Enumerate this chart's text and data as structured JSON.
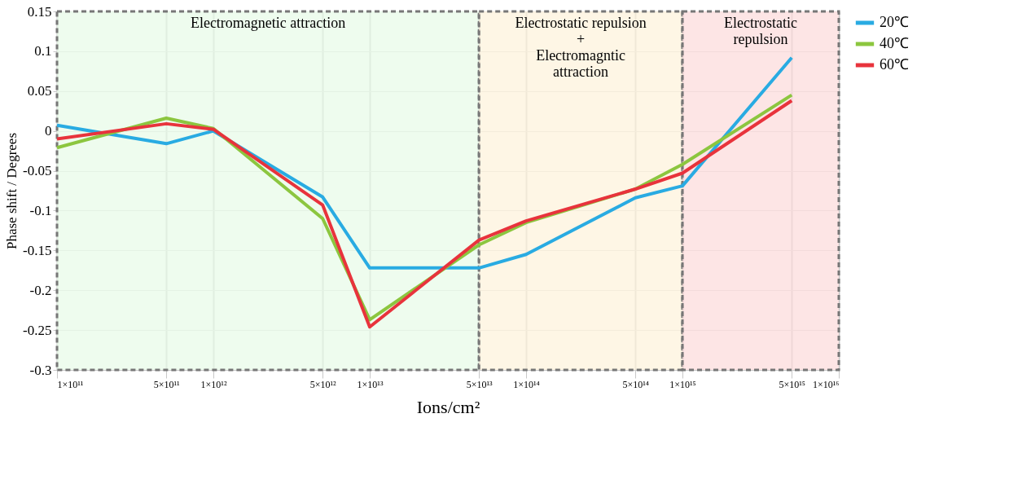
{
  "chart_data": {
    "type": "line",
    "xlabel": "Ions/cm²",
    "ylabel": "Phase shift / Degrees",
    "x": [
      100000000000.0,
      500000000000.0,
      1000000000000.0,
      5000000000000.0,
      10000000000000.0,
      50000000000000.0,
      100000000000000.0,
      500000000000000.0,
      1000000000000000.0,
      5000000000000000.0
    ],
    "series": [
      {
        "name": "20℃",
        "color": "#29abe2",
        "values": [
          0.007,
          -0.016,
          0,
          -0.083,
          -0.172,
          -0.172,
          -0.155,
          -0.084,
          -0.069,
          0.092
        ]
      },
      {
        "name": "40℃",
        "color": "#8cc63f",
        "values": [
          -0.021,
          0.016,
          0.003,
          -0.11,
          -0.237,
          -0.143,
          -0.115,
          -0.073,
          -0.042,
          0.045
        ]
      },
      {
        "name": "60℃",
        "color": "#e8333c",
        "values": [
          -0.01,
          0.009,
          0.002,
          -0.093,
          -0.246,
          -0.137,
          -0.113,
          -0.073,
          -0.053,
          0.038
        ]
      }
    ],
    "xlim": [
      100000000000.0,
      1e+16
    ],
    "xticks": [
      {
        "value": 100000000000.0,
        "label": "1×10¹¹"
      },
      {
        "value": 500000000000.0,
        "label": "5×10¹¹"
      },
      {
        "value": 1000000000000.0,
        "label": "1×10¹²"
      },
      {
        "value": 5000000000000.0,
        "label": "5×10¹²"
      },
      {
        "value": 10000000000000.0,
        "label": "1×10¹³"
      },
      {
        "value": 50000000000000.0,
        "label": "5×10¹³"
      },
      {
        "value": 100000000000000.0,
        "label": "1×10¹⁴"
      },
      {
        "value": 500000000000000.0,
        "label": "5×10¹⁴"
      },
      {
        "value": 1000000000000000.0,
        "label": "1×10¹⁵"
      },
      {
        "value": 5000000000000000.0,
        "label": "5×10¹⁵"
      },
      {
        "value": 1e+16,
        "label": "1×10¹⁶"
      }
    ],
    "ylim": [
      -0.3,
      0.15
    ],
    "yticks": [
      -0.3,
      -0.25,
      -0.2,
      -0.15,
      -0.1,
      -0.05,
      0,
      0.05,
      0.1,
      0.15
    ],
    "bands": [
      {
        "axis": "x",
        "from": 100000000000.0,
        "to": 50000000000000.0,
        "label": "Electromagnetic attraction",
        "color": "#e8fbe8"
      },
      {
        "axis": "x",
        "from": 50000000000000.0,
        "to": 1000000000000000.0,
        "label": "Electrostatic repulsion\n+\nElectromagntic\nattraction",
        "color": "#fdf3dc"
      },
      {
        "axis": "x",
        "from": 1000000000000000.0,
        "to": 1e+16,
        "label": "Electrostatic\nrepulsion",
        "color": "#fcdcdc"
      }
    ],
    "log": "x",
    "grid": true,
    "legend": "right",
    "marker": "none",
    "line_style": "solid"
  }
}
